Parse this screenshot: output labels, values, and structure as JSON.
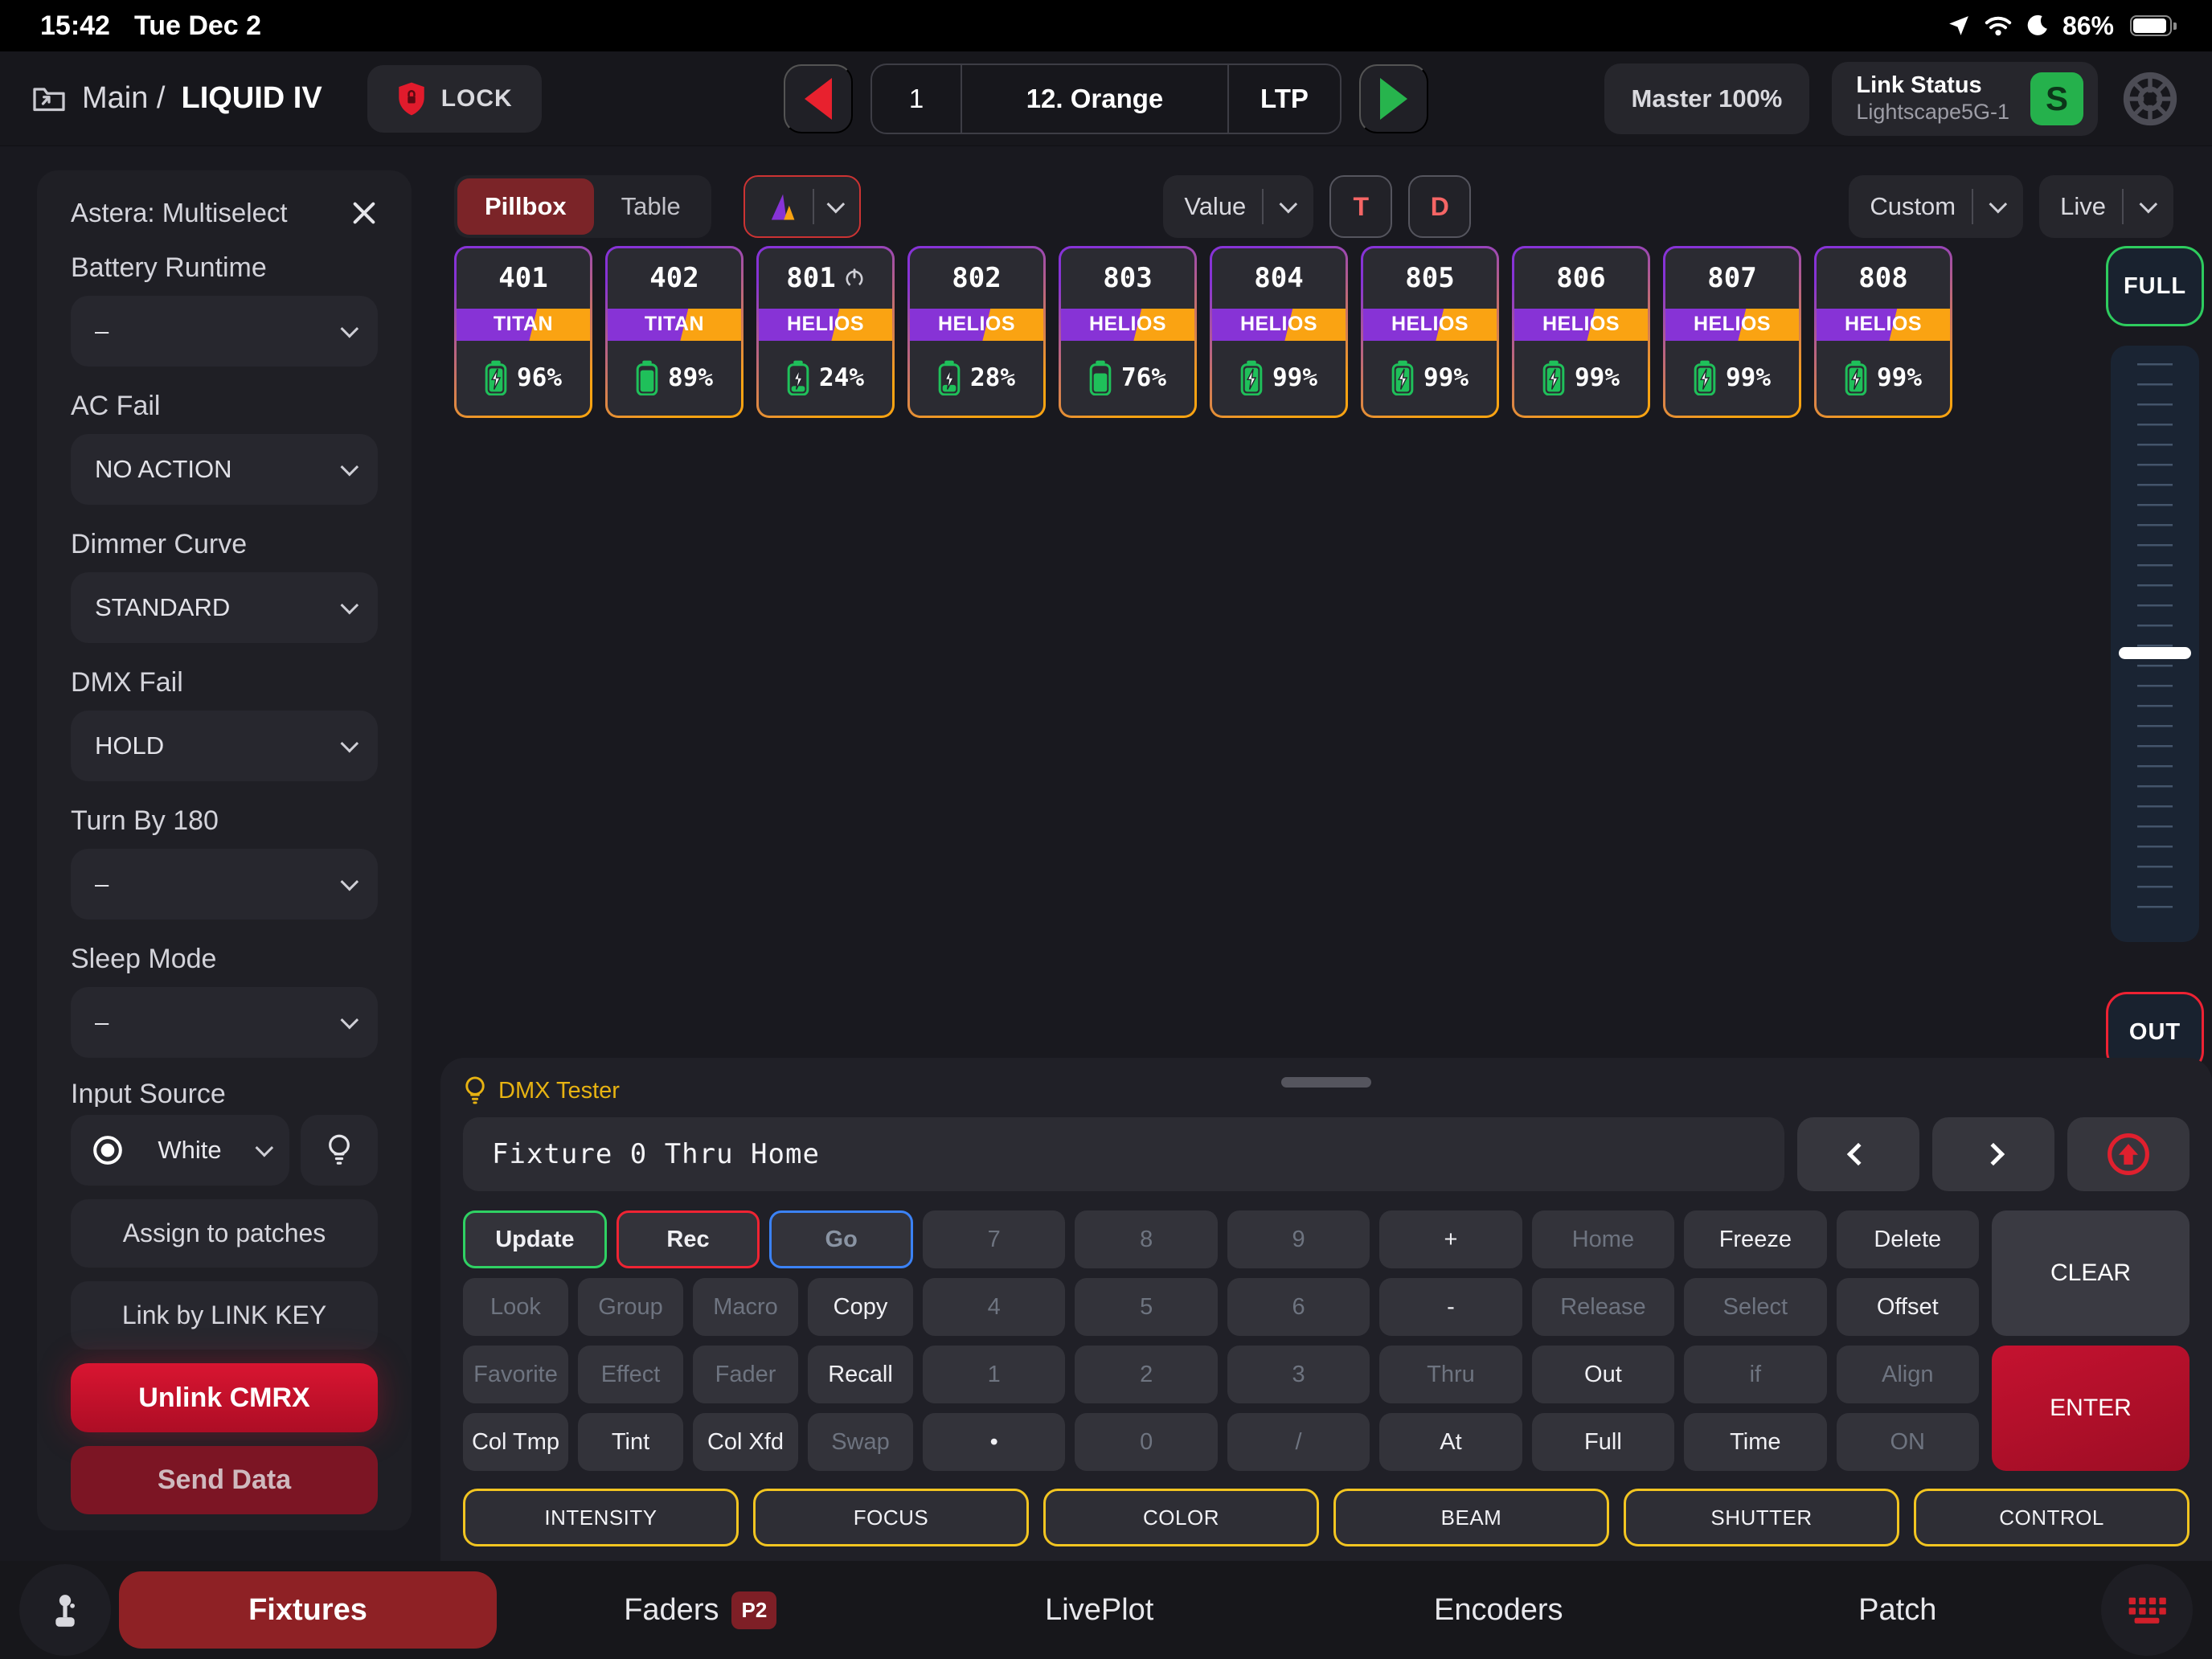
{
  "status_bar": {
    "time": "15:42",
    "date": "Tue Dec 2",
    "battery_pct": "86%"
  },
  "toolbar": {
    "breadcrumb_root": "Main /",
    "breadcrumb_current": "LIQUID IV",
    "lock_label": "LOCK",
    "cue_number": "1",
    "cue_name": "12. Orange",
    "cue_mode": "LTP",
    "master_label": "Master 100%",
    "link_status_title": "Link Status",
    "link_status_network": "Lightscape5G-1",
    "link_badge": "S"
  },
  "sidebar": {
    "title": "Astera: Multiselect",
    "fields": [
      {
        "label": "Battery Runtime",
        "value": "–"
      },
      {
        "label": "AC Fail",
        "value": "NO ACTION"
      },
      {
        "label": "Dimmer Curve",
        "value": "STANDARD"
      },
      {
        "label": "DMX Fail",
        "value": "HOLD"
      },
      {
        "label": "Turn By 180",
        "value": "–"
      },
      {
        "label": "Sleep Mode",
        "value": "–"
      }
    ],
    "input_source_label": "Input Source",
    "input_source_value": "White",
    "assign_label": "Assign to patches",
    "link_key_label": "Link by LINK KEY",
    "unlink_label": "Unlink CMRX",
    "send_label": "Send Data"
  },
  "view_bar": {
    "pillbox_label": "Pillbox",
    "table_label": "Table",
    "value_label": "Value",
    "t_label": "T",
    "d_label": "D",
    "custom_label": "Custom",
    "live_label": "Live"
  },
  "fixtures": [
    {
      "id": "401",
      "type": "TITAN",
      "battery": "96%",
      "level": 96,
      "charging": true,
      "power_icon": false
    },
    {
      "id": "402",
      "type": "TITAN",
      "battery": "89%",
      "level": 89,
      "charging": false,
      "power_icon": false
    },
    {
      "id": "801",
      "type": "HELIOS",
      "battery": "24%",
      "level": 24,
      "charging": true,
      "power_icon": true
    },
    {
      "id": "802",
      "type": "HELIOS",
      "battery": "28%",
      "level": 28,
      "charging": true,
      "power_icon": false
    },
    {
      "id": "803",
      "type": "HELIOS",
      "battery": "76%",
      "level": 76,
      "charging": false,
      "power_icon": false
    },
    {
      "id": "804",
      "type": "HELIOS",
      "battery": "99%",
      "level": 99,
      "charging": true,
      "power_icon": false
    },
    {
      "id": "805",
      "type": "HELIOS",
      "battery": "99%",
      "level": 99,
      "charging": true,
      "power_icon": false
    },
    {
      "id": "806",
      "type": "HELIOS",
      "battery": "99%",
      "level": 99,
      "charging": true,
      "power_icon": false
    },
    {
      "id": "807",
      "type": "HELIOS",
      "battery": "99%",
      "level": 99,
      "charging": true,
      "power_icon": false
    },
    {
      "id": "808",
      "type": "HELIOS",
      "battery": "99%",
      "level": 99,
      "charging": true,
      "power_icon": false
    }
  ],
  "fader": {
    "full_label": "FULL",
    "out_label": "OUT"
  },
  "dmx_tester": {
    "title": "DMX Tester",
    "command": "Fixture 0 Thru Home",
    "keypad_rows": [
      {
        "left": [
          {
            "label": "Update",
            "variant": "green"
          },
          {
            "label": "Rec",
            "variant": "redb"
          },
          {
            "label": "Go",
            "variant": "blue"
          }
        ],
        "mid": [
          {
            "label": "7",
            "variant": "dim"
          },
          {
            "label": "8",
            "variant": "dim"
          },
          {
            "label": "9",
            "variant": "dim"
          },
          {
            "label": "+",
            "variant": ""
          },
          {
            "label": "Home",
            "variant": "dim"
          },
          {
            "label": "Freeze",
            "variant": ""
          },
          {
            "label": "Delete",
            "variant": ""
          }
        ]
      },
      {
        "left": [
          {
            "label": "Look",
            "variant": "dim"
          },
          {
            "label": "Group",
            "variant": "dim"
          },
          {
            "label": "Macro",
            "variant": "dim"
          },
          {
            "label": "Copy",
            "variant": ""
          }
        ],
        "mid": [
          {
            "label": "4",
            "variant": "dim"
          },
          {
            "label": "5",
            "variant": "dim"
          },
          {
            "label": "6",
            "variant": "dim"
          },
          {
            "label": "-",
            "variant": ""
          },
          {
            "label": "Release",
            "variant": "dim"
          },
          {
            "label": "Select",
            "variant": "dim"
          },
          {
            "label": "Offset",
            "variant": ""
          }
        ]
      },
      {
        "left": [
          {
            "label": "Favorite",
            "variant": "dim"
          },
          {
            "label": "Effect",
            "variant": "dim"
          },
          {
            "label": "Fader",
            "variant": "dim"
          },
          {
            "label": "Recall",
            "variant": ""
          }
        ],
        "mid": [
          {
            "label": "1",
            "variant": "dim"
          },
          {
            "label": "2",
            "variant": "dim"
          },
          {
            "label": "3",
            "variant": "dim"
          },
          {
            "label": "Thru",
            "variant": "dim"
          },
          {
            "label": "Out",
            "variant": ""
          },
          {
            "label": "if",
            "variant": "dim"
          },
          {
            "label": "Align",
            "variant": "dim"
          }
        ]
      },
      {
        "left": [
          {
            "label": "Col Tmp",
            "variant": ""
          },
          {
            "label": "Tint",
            "variant": ""
          },
          {
            "label": "Col Xfd",
            "variant": ""
          },
          {
            "label": "Swap",
            "variant": "dim"
          }
        ],
        "mid": [
          {
            "label": "•",
            "variant": ""
          },
          {
            "label": "0",
            "variant": "dim"
          },
          {
            "label": "/",
            "variant": "dim"
          },
          {
            "label": "At",
            "variant": ""
          },
          {
            "label": "Full",
            "variant": ""
          },
          {
            "label": "Time",
            "variant": ""
          },
          {
            "label": "ON",
            "variant": "dim"
          }
        ]
      }
    ],
    "clear_label": "CLEAR",
    "enter_label": "ENTER",
    "palettes": [
      "INTENSITY",
      "FOCUS",
      "COLOR",
      "BEAM",
      "SHUTTER",
      "CONTROL"
    ]
  },
  "bottom_nav": {
    "items": [
      {
        "label": "Fixtures",
        "active": true
      },
      {
        "label": "Faders",
        "badge": "P2"
      },
      {
        "label": "LivePlot"
      },
      {
        "label": "Encoders"
      },
      {
        "label": "Patch"
      }
    ]
  },
  "colors": {
    "accent_red": "#e0202e",
    "green": "#27b44d",
    "yellow": "#f2c521",
    "purple": "#8733d6",
    "orange": "#faa312",
    "battery_green": "#1fc05a"
  }
}
